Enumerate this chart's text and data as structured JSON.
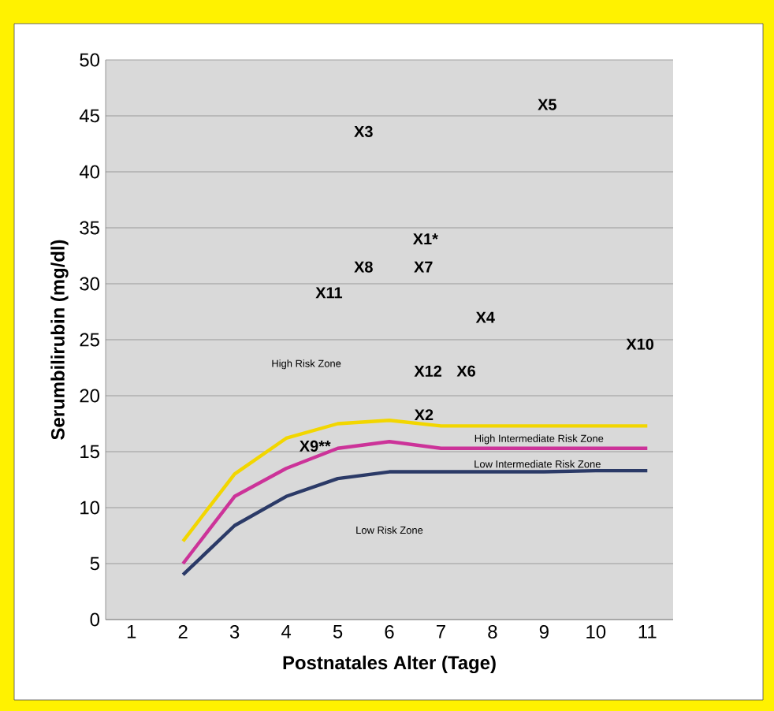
{
  "chart_data": {
    "type": "line",
    "xlabel": "Postnatales Alter (Tage)",
    "ylabel": "Serumbilirubin (mg/dl)",
    "xlim": [
      0.5,
      11.5
    ],
    "xticks": [
      1,
      2,
      3,
      4,
      5,
      6,
      7,
      8,
      9,
      10,
      11
    ],
    "ylim": [
      0,
      50
    ],
    "yticks": [
      0,
      5,
      10,
      15,
      20,
      25,
      30,
      35,
      40,
      45,
      50
    ],
    "grid": "y",
    "marker": "none",
    "line_style": "solid",
    "x": [
      2,
      3,
      4,
      5,
      6,
      7,
      8,
      9,
      10,
      11
    ],
    "series": [
      {
        "color": "#f2d600",
        "values": [
          7,
          13,
          16.2,
          17.5,
          17.8,
          17.3,
          17.3,
          17.3,
          17.3,
          17.3
        ]
      },
      {
        "color": "#cc3399",
        "values": [
          5,
          11,
          13.5,
          15.3,
          15.9,
          15.3,
          15.3,
          15.3,
          15.3,
          15.3
        ]
      },
      {
        "color": "#2b3a67",
        "values": [
          4,
          8.4,
          11,
          12.6,
          13.2,
          13.2,
          13.2,
          13.2,
          13.3,
          13.3
        ]
      }
    ],
    "annotations": [
      "X1*",
      "X2",
      "X3",
      "X4",
      "X5",
      "X6",
      "X7",
      "X8",
      "X9**",
      "X10",
      "X11",
      "X12",
      "High Risk Zone",
      "High Intermediate Risk Zone",
      "Low Intermediate Risk Zone",
      "Low Risk Zone"
    ]
  }
}
